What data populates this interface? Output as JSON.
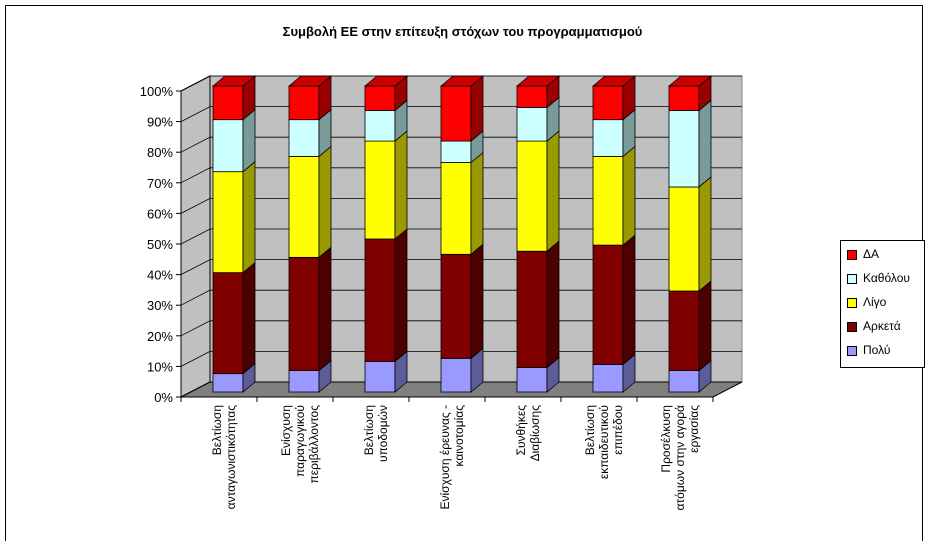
{
  "chart_data": {
    "type": "bar",
    "stacked": "percent",
    "title": "Συμβολή ΕΕ στην επίτευξη στόχων του προγραμματισμού",
    "ylim": [
      0,
      100
    ],
    "yticks": [
      "0%",
      "10%",
      "20%",
      "30%",
      "40%",
      "50%",
      "60%",
      "70%",
      "80%",
      "90%",
      "100%"
    ],
    "grid": true,
    "legend_position": "right",
    "categories": [
      [
        "Βελτίωση",
        "ανταγωνιστικότητας"
      ],
      [
        "Ενίσχυση",
        "παραγωγικού",
        "περιβάλλοντος"
      ],
      [
        "Βελτίωση",
        "υποδομών"
      ],
      [
        "Ενίσχυση έρευνας -",
        "καινοτομίας"
      ],
      [
        "Συνθήκες",
        "Διαβίωσης"
      ],
      [
        "Βελτίωση",
        "εκπαιδευτικού",
        "επιπέδου"
      ],
      [
        "Προσέλκυση",
        "ατόμων στην αγορά",
        "εργασίας"
      ]
    ],
    "series": [
      {
        "name": "Πολύ",
        "color": "#9999ff",
        "values": [
          6,
          7,
          10,
          11,
          8,
          9,
          7
        ]
      },
      {
        "name": "Αρκετά",
        "color": "#800000",
        "values": [
          33,
          37,
          40,
          34,
          38,
          39,
          26
        ]
      },
      {
        "name": "Λίγο",
        "color": "#ffff00",
        "values": [
          33,
          33,
          32,
          30,
          36,
          29,
          34
        ]
      },
      {
        "name": "Καθόλου",
        "color": "#ccffff",
        "values": [
          17,
          12,
          10,
          7,
          11,
          12,
          25
        ]
      },
      {
        "name": "ΔΑ",
        "color": "#ff0000",
        "values": [
          11,
          11,
          8,
          18,
          7,
          11,
          8
        ]
      }
    ]
  }
}
